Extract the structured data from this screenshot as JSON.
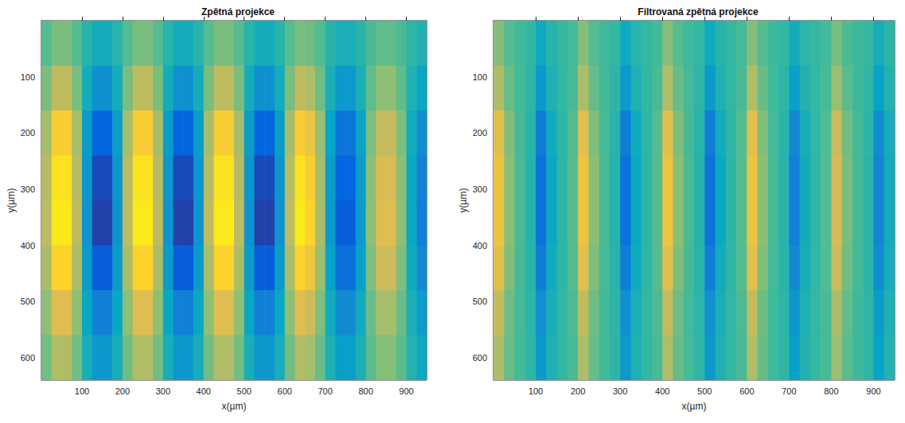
{
  "chart_data": [
    {
      "type": "heatmap",
      "title": "Zpětná projekce",
      "x_label": "x(µm)",
      "y_label": "y(µm)",
      "xlim": [
        0,
        950
      ],
      "ylim": [
        640,
        0
      ],
      "xticks": [
        100,
        200,
        300,
        400,
        500,
        600,
        700,
        800,
        900
      ],
      "yticks": [
        100,
        200,
        300,
        400,
        500,
        600
      ],
      "color_range": [
        -1,
        1
      ],
      "x": [
        12.5,
        37.5,
        62.5,
        87.5,
        112.5,
        137.5,
        162.5,
        187.5,
        212.5,
        237.5,
        262.5,
        287.5,
        312.5,
        337.5,
        362.5,
        387.5,
        412.5,
        437.5,
        462.5,
        487.5,
        512.5,
        537.5,
        562.5,
        587.5,
        612.5,
        637.5,
        662.5,
        687.5,
        712.5,
        737.5,
        762.5,
        787.5,
        812.5,
        837.5,
        862.5,
        887.5,
        912.5,
        937.5
      ],
      "y": [
        40,
        120,
        200,
        280,
        360,
        440,
        520,
        600
      ],
      "values": [
        [
          0.08,
          0.18,
          0.18,
          0.08,
          -0.08,
          -0.18,
          -0.18,
          -0.08,
          0.08,
          0.18,
          0.18,
          0.08,
          -0.08,
          -0.18,
          -0.18,
          -0.08,
          0.08,
          0.18,
          0.18,
          0.08,
          -0.08,
          -0.18,
          -0.18,
          -0.08,
          0.08,
          0.18,
          0.15,
          0.07,
          -0.07,
          -0.15,
          -0.15,
          -0.07,
          0.05,
          0.11,
          0.11,
          0.05,
          -0.05,
          -0.11
        ],
        [
          0.18,
          0.41,
          0.41,
          0.18,
          -0.18,
          -0.41,
          -0.41,
          -0.18,
          0.18,
          0.41,
          0.41,
          0.18,
          -0.18,
          -0.41,
          -0.41,
          -0.18,
          0.18,
          0.41,
          0.41,
          0.18,
          -0.18,
          -0.41,
          -0.41,
          -0.18,
          0.18,
          0.41,
          0.35,
          0.15,
          -0.15,
          -0.35,
          -0.35,
          -0.15,
          0.11,
          0.24,
          0.24,
          0.11,
          -0.11,
          -0.24
        ],
        [
          0.32,
          0.72,
          0.72,
          0.32,
          -0.32,
          -0.72,
          -0.72,
          -0.32,
          0.32,
          0.72,
          0.72,
          0.32,
          -0.32,
          -0.72,
          -0.72,
          -0.32,
          0.32,
          0.72,
          0.72,
          0.32,
          -0.32,
          -0.72,
          -0.72,
          -0.32,
          0.32,
          0.72,
          0.62,
          0.27,
          -0.27,
          -0.62,
          -0.62,
          -0.27,
          0.19,
          0.43,
          0.43,
          0.19,
          -0.19,
          -0.43
        ],
        [
          0.38,
          0.86,
          0.86,
          0.38,
          -0.38,
          -0.86,
          -0.86,
          -0.38,
          0.38,
          0.86,
          0.86,
          0.38,
          -0.38,
          -0.86,
          -0.86,
          -0.38,
          0.38,
          0.86,
          0.86,
          0.38,
          -0.38,
          -0.86,
          -0.86,
          -0.38,
          0.38,
          0.86,
          0.73,
          0.32,
          -0.32,
          -0.73,
          -0.73,
          -0.32,
          0.23,
          0.51,
          0.51,
          0.23,
          -0.23,
          -0.51
        ],
        [
          0.4,
          0.9,
          0.9,
          0.4,
          -0.4,
          -0.9,
          -0.9,
          -0.4,
          0.4,
          0.9,
          0.9,
          0.4,
          -0.4,
          -0.9,
          -0.9,
          -0.4,
          0.4,
          0.9,
          0.9,
          0.4,
          -0.4,
          -0.9,
          -0.9,
          -0.4,
          0.4,
          0.9,
          0.77,
          0.34,
          -0.34,
          -0.77,
          -0.77,
          -0.34,
          0.24,
          0.54,
          0.54,
          0.24,
          -0.24,
          -0.54
        ],
        [
          0.34,
          0.77,
          0.77,
          0.34,
          -0.34,
          -0.77,
          -0.77,
          -0.34,
          0.34,
          0.77,
          0.77,
          0.34,
          -0.34,
          -0.77,
          -0.77,
          -0.34,
          0.34,
          0.77,
          0.77,
          0.34,
          -0.34,
          -0.77,
          -0.77,
          -0.34,
          0.34,
          0.77,
          0.65,
          0.29,
          -0.29,
          -0.65,
          -0.65,
          -0.29,
          0.2,
          0.46,
          0.46,
          0.2,
          -0.2,
          -0.46
        ],
        [
          0.24,
          0.54,
          0.54,
          0.24,
          -0.24,
          -0.54,
          -0.54,
          -0.24,
          0.24,
          0.54,
          0.54,
          0.24,
          -0.24,
          -0.54,
          -0.54,
          -0.24,
          0.24,
          0.54,
          0.54,
          0.24,
          -0.24,
          -0.54,
          -0.54,
          -0.24,
          0.24,
          0.54,
          0.46,
          0.2,
          -0.2,
          -0.46,
          -0.46,
          -0.2,
          0.14,
          0.32,
          0.32,
          0.14,
          -0.14,
          -0.32
        ],
        [
          0.16,
          0.36,
          0.36,
          0.16,
          -0.16,
          -0.36,
          -0.36,
          -0.16,
          0.16,
          0.36,
          0.36,
          0.16,
          -0.16,
          -0.36,
          -0.36,
          -0.16,
          0.16,
          0.36,
          0.36,
          0.16,
          -0.16,
          -0.36,
          -0.36,
          -0.16,
          0.16,
          0.36,
          0.31,
          0.14,
          -0.14,
          -0.31,
          -0.31,
          -0.14,
          0.1,
          0.22,
          0.22,
          0.1,
          -0.1,
          -0.22
        ]
      ]
    },
    {
      "type": "heatmap",
      "title": "Filtrovaná zpětná projekce",
      "x_label": "x(µm)",
      "y_label": "y(µm)",
      "xlim": [
        0,
        950
      ],
      "ylim": [
        640,
        0
      ],
      "xticks": [
        100,
        200,
        300,
        400,
        500,
        600,
        700,
        800,
        900
      ],
      "yticks": [
        100,
        200,
        300,
        400,
        500,
        600
      ],
      "color_range": [
        -1,
        1
      ],
      "x": [
        12.5,
        37.5,
        62.5,
        87.5,
        112.5,
        137.5,
        162.5,
        187.5,
        212.5,
        237.5,
        262.5,
        287.5,
        312.5,
        337.5,
        362.5,
        387.5,
        412.5,
        437.5,
        462.5,
        487.5,
        512.5,
        537.5,
        562.5,
        587.5,
        612.5,
        637.5,
        662.5,
        687.5,
        712.5,
        737.5,
        762.5,
        787.5,
        812.5,
        837.5,
        862.5,
        887.5,
        912.5,
        937.5
      ],
      "y": [
        40,
        120,
        200,
        280,
        360,
        440,
        520,
        600
      ],
      "values": [
        [
          0.21,
          0.08,
          0.02,
          -0.03,
          -0.21,
          -0.08,
          -0.02,
          0.03,
          0.21,
          0.08,
          0.02,
          -0.03,
          -0.21,
          -0.08,
          -0.02,
          0.03,
          0.21,
          0.08,
          0.02,
          -0.03,
          -0.21,
          -0.08,
          -0.02,
          0.03,
          0.21,
          0.08,
          0.01,
          -0.03,
          -0.18,
          -0.06,
          -0.01,
          0.03,
          0.17,
          0.06,
          0.01,
          -0.02,
          -0.17,
          -0.06
        ],
        [
          0.35,
          0.13,
          0.03,
          -0.05,
          -0.35,
          -0.13,
          -0.03,
          0.05,
          0.35,
          0.13,
          0.03,
          -0.05,
          -0.35,
          -0.13,
          -0.03,
          0.05,
          0.35,
          0.13,
          0.03,
          -0.05,
          -0.35,
          -0.13,
          -0.03,
          0.05,
          0.35,
          0.13,
          0.02,
          -0.05,
          -0.3,
          -0.11,
          -0.02,
          0.05,
          0.28,
          0.1,
          0.02,
          -0.04,
          -0.28,
          -0.1
        ],
        [
          0.56,
          0.2,
          0.04,
          -0.08,
          -0.56,
          -0.2,
          -0.04,
          0.08,
          0.56,
          0.2,
          0.04,
          -0.08,
          -0.56,
          -0.2,
          -0.04,
          0.08,
          0.56,
          0.2,
          0.04,
          -0.08,
          -0.56,
          -0.2,
          -0.04,
          0.08,
          0.56,
          0.2,
          0.03,
          -0.07,
          -0.48,
          -0.17,
          -0.03,
          0.07,
          0.45,
          0.16,
          0.03,
          -0.06,
          -0.45,
          -0.16
        ],
        [
          0.63,
          0.23,
          0.05,
          -0.09,
          -0.63,
          -0.23,
          -0.05,
          0.09,
          0.63,
          0.23,
          0.05,
          -0.09,
          -0.63,
          -0.23,
          -0.05,
          0.09,
          0.63,
          0.23,
          0.05,
          -0.09,
          -0.63,
          -0.23,
          -0.05,
          0.09,
          0.63,
          0.23,
          0.04,
          -0.08,
          -0.54,
          -0.19,
          -0.04,
          0.08,
          0.5,
          0.18,
          0.04,
          -0.07,
          -0.5,
          -0.18
        ],
        [
          0.63,
          0.23,
          0.05,
          -0.09,
          -0.63,
          -0.23,
          -0.05,
          0.09,
          0.63,
          0.23,
          0.05,
          -0.09,
          -0.63,
          -0.23,
          -0.05,
          0.09,
          0.63,
          0.23,
          0.05,
          -0.09,
          -0.63,
          -0.23,
          -0.05,
          0.09,
          0.63,
          0.23,
          0.04,
          -0.08,
          -0.54,
          -0.19,
          -0.04,
          0.08,
          0.5,
          0.18,
          0.04,
          -0.07,
          -0.5,
          -0.18
        ],
        [
          0.56,
          0.2,
          0.04,
          -0.08,
          -0.56,
          -0.2,
          -0.04,
          0.08,
          0.56,
          0.2,
          0.04,
          -0.08,
          -0.56,
          -0.2,
          -0.04,
          0.08,
          0.56,
          0.2,
          0.04,
          -0.08,
          -0.56,
          -0.2,
          -0.04,
          0.08,
          0.56,
          0.2,
          0.03,
          -0.07,
          -0.48,
          -0.17,
          -0.03,
          0.07,
          0.45,
          0.16,
          0.03,
          -0.06,
          -0.45,
          -0.16
        ],
        [
          0.42,
          0.15,
          0.03,
          -0.06,
          -0.42,
          -0.15,
          -0.03,
          0.06,
          0.42,
          0.15,
          0.03,
          -0.06,
          -0.42,
          -0.15,
          -0.03,
          0.06,
          0.42,
          0.15,
          0.03,
          -0.06,
          -0.42,
          -0.15,
          -0.03,
          0.06,
          0.42,
          0.15,
          0.02,
          -0.05,
          -0.36,
          -0.13,
          -0.02,
          0.05,
          0.34,
          0.12,
          0.02,
          -0.05,
          -0.34,
          -0.12
        ],
        [
          0.35,
          0.13,
          0.03,
          -0.05,
          -0.35,
          -0.13,
          -0.03,
          0.05,
          0.35,
          0.13,
          0.03,
          -0.05,
          -0.35,
          -0.13,
          -0.03,
          0.05,
          0.35,
          0.13,
          0.03,
          -0.05,
          -0.35,
          -0.13,
          -0.03,
          0.05,
          0.35,
          0.13,
          0.02,
          -0.05,
          -0.3,
          -0.11,
          -0.02,
          0.05,
          0.28,
          0.1,
          0.02,
          -0.04,
          -0.28,
          -0.1
        ]
      ]
    }
  ]
}
